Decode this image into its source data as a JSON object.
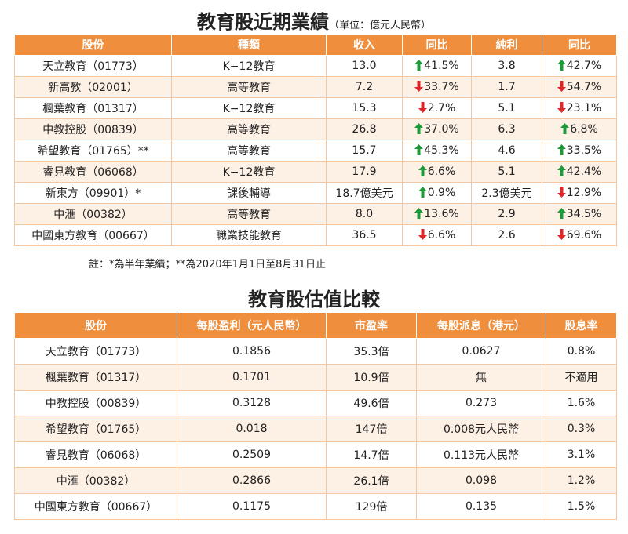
{
  "table1": {
    "title": "教育股近期業績",
    "unit": "（單位：億元人民幣）",
    "header": [
      "股份",
      "種類",
      "收入",
      "同比",
      "純利",
      "同比"
    ],
    "rows": [
      [
        "天立教育（01773）",
        "K−12教育",
        "13.0",
        {
          "arrow": "up",
          "text": "41.5%"
        },
        "3.8",
        {
          "arrow": "up",
          "text": "42.7%"
        }
      ],
      [
        "新高教（02001）",
        "高等教育",
        "7.2",
        {
          "arrow": "down",
          "text": "33.7%"
        },
        "1.7",
        {
          "arrow": "down",
          "text": "54.7%"
        }
      ],
      [
        "楓葉教育（01317）",
        "K−12教育",
        "15.3",
        {
          "arrow": "down",
          "text": "2.7%"
        },
        "5.1",
        {
          "arrow": "down",
          "text": "23.1%"
        }
      ],
      [
        "中教控股（00839）",
        "高等教育",
        "26.8",
        {
          "arrow": "up",
          "text": "37.0%"
        },
        "6.3",
        {
          "arrow": "up",
          "text": "6.8%"
        }
      ],
      [
        "希望教育（01765）**",
        "高等教育",
        "15.7",
        {
          "arrow": "up",
          "text": "45.3%"
        },
        "4.6",
        {
          "arrow": "up",
          "text": "33.5%"
        }
      ],
      [
        "睿見教育（06068）",
        "K−12教育",
        "17.9",
        {
          "arrow": "up",
          "text": "6.6%"
        },
        "5.1",
        {
          "arrow": "up",
          "text": "42.4%"
        }
      ],
      [
        "新東方（09901）*",
        "課後輔導",
        "18.7億美元",
        {
          "arrow": "up",
          "text": "0.9%"
        },
        "2.3億美元",
        {
          "arrow": "down",
          "text": "12.9%"
        }
      ],
      [
        "中滙（00382）",
        "高等教育",
        "8.0",
        {
          "arrow": "up",
          "text": "13.6%"
        },
        "2.9",
        {
          "arrow": "up",
          "text": "34.5%"
        }
      ],
      [
        "中國東方教育（00667）",
        "職業技能教育",
        "36.5",
        {
          "arrow": "down",
          "text": "6.6%"
        },
        "2.6",
        {
          "arrow": "down",
          "text": "69.6%"
        }
      ]
    ],
    "note": "註：*為半年業績；**為2020年1月1日至8月31日止"
  },
  "table2": {
    "title": "教育股估值比較",
    "header": [
      "股份",
      "每股盈利（元人民幣）",
      "市盈率",
      "每股派息（港元）",
      "股息率"
    ],
    "rows": [
      [
        "天立教育（01773）",
        "0.1856",
        "35.3倍",
        "0.0627",
        "0.8%"
      ],
      [
        "楓葉教育（01317）",
        "0.1701",
        "10.9倍",
        "無",
        "不適用"
      ],
      [
        "中教控股（00839）",
        "0.3128",
        "49.6倍",
        "0.273",
        "1.6%"
      ],
      [
        "希望教育（01765）",
        "0.018",
        "147倍",
        "0.008元人民幣",
        "0.3%"
      ],
      [
        "睿見教育（06068）",
        "0.2509",
        "14.7倍",
        "0.113元人民幣",
        "3.1%"
      ],
      [
        "中滙（00382）",
        "0.2866",
        "26.1倍",
        "0.098",
        "1.2%"
      ],
      [
        "中國東方教育（00667）",
        "0.1175",
        "129倍",
        "0.135",
        "1.5%"
      ]
    ]
  }
}
